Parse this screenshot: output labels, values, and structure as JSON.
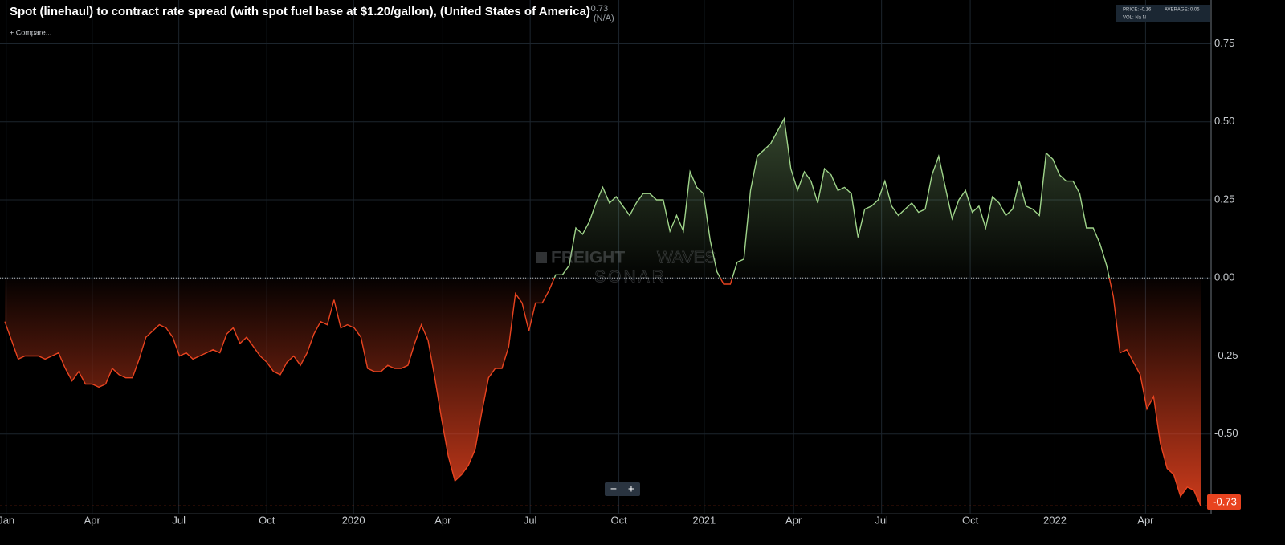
{
  "header": {
    "title": "Spot (linehaul) to contract rate spread (with spot fuel base at $1.20/gallon), (United States of America)",
    "current_value": "-0.73",
    "change": "(N/A)",
    "compare": "+ Compare..."
  },
  "info": {
    "price": "PRICE: -0.16",
    "average": "AVERAGE: 0.05",
    "vol": "VOL: Na N"
  },
  "watermark": {
    "brand_bold": "FREIGHT",
    "brand_light": "WAVES",
    "product": "SONAR"
  },
  "zoom": {
    "out": "−",
    "in": "+"
  },
  "chart_data": {
    "type": "area",
    "color_up": "#9fd48a",
    "color_down": "#e8431f",
    "xlim": [
      0,
      178
    ],
    "ylim": [
      -0.75,
      0.89
    ],
    "xticks": [
      {
        "value": 0.2,
        "label": "Jan"
      },
      {
        "value": 13,
        "label": "Apr"
      },
      {
        "value": 25.9,
        "label": "Jul"
      },
      {
        "value": 39,
        "label": "Oct"
      },
      {
        "value": 51.9,
        "label": "2020"
      },
      {
        "value": 65.2,
        "label": "Apr"
      },
      {
        "value": 78.2,
        "label": "Jul"
      },
      {
        "value": 91.4,
        "label": "Oct"
      },
      {
        "value": 104.1,
        "label": "2021"
      },
      {
        "value": 117.4,
        "label": "Apr"
      },
      {
        "value": 130.5,
        "label": "Jul"
      },
      {
        "value": 143.7,
        "label": "Oct"
      },
      {
        "value": 156.3,
        "label": "2022"
      },
      {
        "value": 169.8,
        "label": "Apr"
      }
    ],
    "yticks": [
      0.75,
      {
        "value": 0.5,
        "label": "0.50"
      },
      0.25,
      {
        "value": 0,
        "label": "0.00"
      },
      -0.25,
      {
        "value": -0.5,
        "label": "-0.50"
      }
    ],
    "grid": true,
    "values": [
      -0.14,
      -0.2,
      -0.26,
      -0.25,
      -0.25,
      -0.25,
      -0.26,
      -0.25,
      -0.24,
      -0.29,
      -0.33,
      -0.3,
      -0.34,
      -0.34,
      -0.35,
      -0.34,
      -0.29,
      -0.31,
      -0.32,
      -0.32,
      -0.26,
      -0.19,
      -0.17,
      -0.15,
      -0.16,
      -0.19,
      -0.25,
      -0.24,
      -0.26,
      -0.25,
      -0.24,
      -0.23,
      -0.24,
      -0.18,
      -0.16,
      -0.21,
      -0.19,
      -0.22,
      -0.25,
      -0.27,
      -0.3,
      -0.31,
      -0.27,
      -0.25,
      -0.28,
      -0.24,
      -0.18,
      -0.14,
      -0.15,
      -0.07,
      -0.16,
      -0.15,
      -0.16,
      -0.19,
      -0.29,
      -0.3,
      -0.3,
      -0.28,
      -0.29,
      -0.29,
      -0.28,
      -0.21,
      -0.15,
      -0.2,
      -0.32,
      -0.45,
      -0.57,
      -0.65,
      -0.63,
      -0.6,
      -0.55,
      -0.43,
      -0.32,
      -0.29,
      -0.29,
      -0.22,
      -0.05,
      -0.08,
      -0.17,
      -0.08,
      -0.08,
      -0.04,
      0.01,
      0.01,
      0.04,
      0.16,
      0.14,
      0.18,
      0.24,
      0.29,
      0.24,
      0.26,
      0.23,
      0.2,
      0.24,
      0.27,
      0.27,
      0.25,
      0.25,
      0.15,
      0.2,
      0.15,
      0.34,
      0.29,
      0.27,
      0.12,
      0.02,
      -0.02,
      -0.02,
      0.05,
      0.06,
      0.28,
      0.39,
      0.41,
      0.43,
      0.47,
      0.51,
      0.35,
      0.28,
      0.34,
      0.31,
      0.24,
      0.35,
      0.33,
      0.28,
      0.29,
      0.27,
      0.13,
      0.22,
      0.23,
      0.25,
      0.31,
      0.23,
      0.2,
      0.22,
      0.24,
      0.21,
      0.22,
      0.33,
      0.39,
      0.29,
      0.19,
      0.25,
      0.28,
      0.21,
      0.23,
      0.16,
      0.26,
      0.24,
      0.2,
      0.22,
      0.31,
      0.23,
      0.22,
      0.2,
      0.4,
      0.38,
      0.33,
      0.31,
      0.31,
      0.27,
      0.16,
      0.16,
      0.11,
      0.04,
      -0.06,
      -0.24,
      -0.23,
      -0.27,
      -0.31,
      -0.42,
      -0.38,
      -0.53,
      -0.61,
      -0.63,
      -0.7,
      -0.67,
      -0.68,
      -0.73
    ]
  }
}
